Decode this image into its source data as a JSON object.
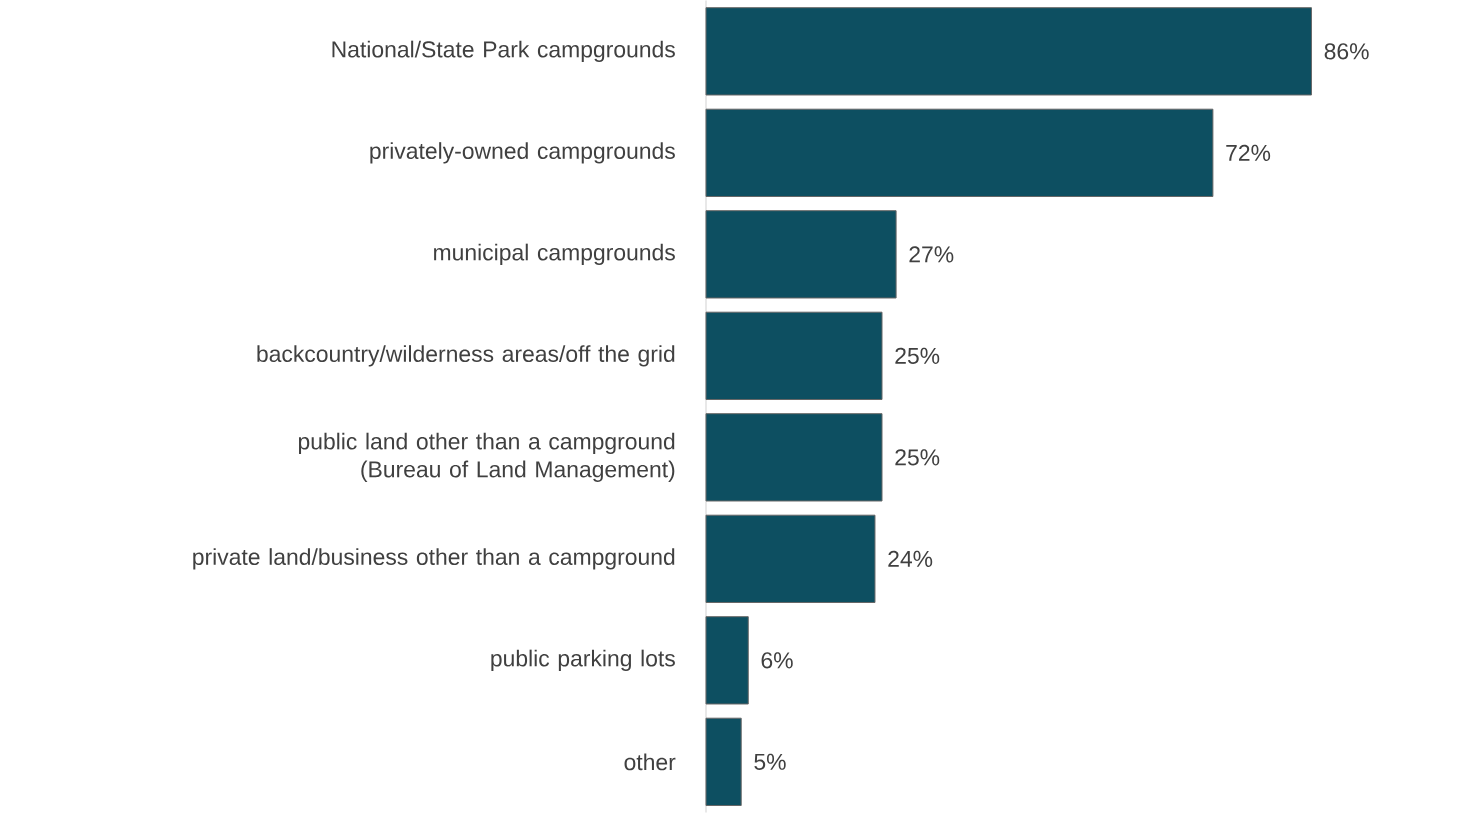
{
  "chart_data": {
    "type": "bar",
    "orientation": "horizontal",
    "categories": [
      "National/State Park campgrounds",
      "privately-owned campgrounds",
      "municipal campgrounds",
      "backcountry/wilderness areas/off the grid",
      "public land other than a campground (Bureau of Land Management)",
      "private land/business other than a campground",
      "public parking lots",
      "other"
    ],
    "values": [
      86,
      72,
      27,
      25,
      25,
      24,
      6,
      5
    ],
    "value_labels": [
      "86%",
      "72%",
      "27%",
      "25%",
      "25%",
      "24%",
      "6%",
      "5%"
    ],
    "color": "#0d4f61"
  }
}
